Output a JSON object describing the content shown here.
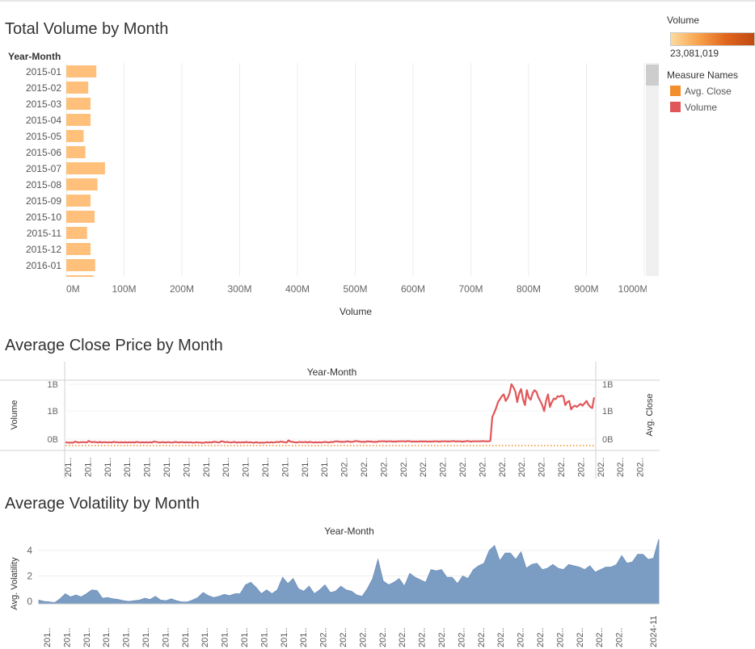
{
  "charts": {
    "volume": {
      "title": "Total Volume by Month"
    },
    "close": {
      "title": "Average Close Price by Month",
      "x_axis_title": "Year-Month"
    },
    "volatility": {
      "title": "Average Volatility by Month",
      "x_axis_title": "Year-Month"
    }
  },
  "legend": {
    "color_title": "Volume",
    "color_value": "23,081,019",
    "measure_title": "Measure Names",
    "measures": [
      {
        "label": "Avg. Close",
        "color": "#f28e2b"
      },
      {
        "label": "Volume",
        "color": "#e15759"
      }
    ]
  },
  "chart_data": [
    {
      "type": "bar",
      "orientation": "horizontal",
      "title": "Total Volume by Month",
      "ylabel": "Year-Month",
      "xlabel": "Volume",
      "categories": [
        "2015-01",
        "2015-02",
        "2015-03",
        "2015-04",
        "2015-05",
        "2015-06",
        "2015-07",
        "2015-08",
        "2015-09",
        "2015-10",
        "2015-11",
        "2015-12",
        "2016-01"
      ],
      "values": [
        52000000,
        38000000,
        42000000,
        42000000,
        30000000,
        33000000,
        67000000,
        54000000,
        42000000,
        49000000,
        36000000,
        42000000,
        50000000
      ],
      "xlim": [
        0,
        1000000000
      ],
      "xticks": [
        "0M",
        "100M",
        "200M",
        "300M",
        "400M",
        "500M",
        "600M",
        "700M",
        "800M",
        "900M",
        "1000M"
      ],
      "bar_color": "#ffc07c"
    },
    {
      "type": "line",
      "title": "Average Close Price by Month",
      "xlabel": "Year-Month",
      "ylabel_left": "Volume",
      "ylabel_right": "Avg. Close",
      "yticks_left": [
        "1B",
        "1B",
        "0B"
      ],
      "yticks_right": [
        "1B",
        "1B",
        "0B"
      ],
      "x_tick_labels": [
        "201..",
        "201..",
        "201..",
        "201..",
        "201..",
        "201..",
        "201..",
        "201..",
        "201..",
        "201..",
        "201..",
        "201..",
        "201..",
        "201..",
        "202..",
        "202..",
        "202..",
        "202..",
        "202..",
        "202..",
        "202..",
        "202..",
        "202..",
        "202..",
        "202..",
        "202..",
        "202..",
        "202..",
        "202..",
        "202.."
      ],
      "series": [
        {
          "name": "Volume",
          "color": "#e15759",
          "values": [
            0.03,
            0.025,
            0.02,
            0.025,
            0.02,
            0.04,
            0.03,
            0.025,
            0.03,
            0.03,
            0.03,
            0.025,
            0.05,
            0.035,
            0.03,
            0.035,
            0.03,
            0.025,
            0.035,
            0.025,
            0.03,
            0.03,
            0.025,
            0.03,
            0.025,
            0.035,
            0.03,
            0.03,
            0.025,
            0.03,
            0.025,
            0.03,
            0.025,
            0.03,
            0.025,
            0.03,
            0.025,
            0.035,
            0.03,
            0.025,
            0.03,
            0.025,
            0.03,
            0.025,
            0.03,
            0.025,
            0.04,
            0.035,
            0.03,
            0.025,
            0.03,
            0.03,
            0.025,
            0.03,
            0.03,
            0.025,
            0.025,
            0.035,
            0.03,
            0.025,
            0.03,
            0.03,
            0.025,
            0.03,
            0.025,
            0.03,
            0.025,
            0.02,
            0.03,
            0.025,
            0.025,
            0.02,
            0.02,
            0.03,
            0.025,
            0.03,
            0.025,
            0.035,
            0.035,
            0.03,
            0.025,
            0.045,
            0.04,
            0.03,
            0.035,
            0.03,
            0.025,
            0.03,
            0.035,
            0.02,
            0.03,
            0.025,
            0.03,
            0.025,
            0.035,
            0.025,
            0.03,
            0.025,
            0.02,
            0.03,
            0.025,
            0.02,
            0.025,
            0.02,
            0.025,
            0.03,
            0.025,
            0.03,
            0.025,
            0.03,
            0.035,
            0.03,
            0.04,
            0.035,
            0.03,
            0.025,
            0.06,
            0.04,
            0.035,
            0.03,
            0.025,
            0.03,
            0.035,
            0.03,
            0.03,
            0.035,
            0.025,
            0.035,
            0.03,
            0.025,
            0.03,
            0.025,
            0.03,
            0.025,
            0.03,
            0.035,
            0.03,
            0.025,
            0.035,
            0.03,
            0.04,
            0.045,
            0.04,
            0.035,
            0.035,
            0.035,
            0.04,
            0.045,
            0.035,
            0.035,
            0.04,
            0.05,
            0.045,
            0.04,
            0.035,
            0.035,
            0.035,
            0.045,
            0.04,
            0.04,
            0.035,
            0.035,
            0.035,
            0.045,
            0.045,
            0.045,
            0.045,
            0.04,
            0.045,
            0.045,
            0.04,
            0.04,
            0.04,
            0.045,
            0.045,
            0.045,
            0.045,
            0.04,
            0.05,
            0.045,
            0.04,
            0.04,
            0.04,
            0.04,
            0.04,
            0.045,
            0.04,
            0.045,
            0.04,
            0.04,
            0.04,
            0.04,
            0.045,
            0.045,
            0.04,
            0.04,
            0.045,
            0.045,
            0.045,
            0.04,
            0.045,
            0.045,
            0.05,
            0.04,
            0.045,
            0.045,
            0.04,
            0.04,
            0.045,
            0.05,
            0.045,
            0.04,
            0.045,
            0.045,
            0.045,
            0.045,
            0.045,
            0.05,
            0.045,
            0.045,
            0.045,
            0.05,
            0.45,
            0.52,
            0.6,
            0.7,
            0.75,
            0.8,
            0.83,
            0.72,
            0.77,
            0.85,
            1.0,
            0.95,
            0.88,
            0.7,
            0.85,
            0.92,
            0.75,
            0.65,
            0.9,
            0.78,
            0.74,
            0.85,
            0.9,
            0.87,
            0.78,
            0.72,
            0.65,
            0.55,
            0.72,
            0.83,
            0.62,
            0.7,
            0.76,
            0.75,
            0.8,
            0.79,
            0.81,
            0.8,
            0.65,
            0.7,
            0.72,
            0.58,
            0.62,
            0.64,
            0.62,
            0.65,
            0.67,
            0.64,
            0.68,
            0.72,
            0.66,
            0.62,
            0.6,
            0.78
          ]
        },
        {
          "name": "Avg. Close",
          "color": "#f28e2b",
          "line_style": "dotted",
          "values": [
            0.0,
            0.0
          ]
        }
      ]
    },
    {
      "type": "area",
      "title": "Average Volatility by Month",
      "xlabel": "Year-Month",
      "ylabel": "Avg. Volatility",
      "yticks": [
        0,
        2,
        4
      ],
      "ylim": [
        -0.5,
        5
      ],
      "x_tick_labels": [
        "201..",
        "201..",
        "201..",
        "201..",
        "201..",
        "201..",
        "201..",
        "201..",
        "201..",
        "201..",
        "201..",
        "201..",
        "201..",
        "201..",
        "202..",
        "202..",
        "202..",
        "202..",
        "202..",
        "202..",
        "202..",
        "202..",
        "202..",
        "202..",
        "202..",
        "202..",
        "202..",
        "202..",
        "202..",
        "202..",
        "2024-11"
      ],
      "series": [
        {
          "name": "Avg. Volatility",
          "color": "#7b9cc3",
          "values": [
            0.1,
            0.0,
            -0.05,
            -0.1,
            0.2,
            0.6,
            0.35,
            0.5,
            0.35,
            0.6,
            0.9,
            0.85,
            0.25,
            0.3,
            0.2,
            0.15,
            0.05,
            0.0,
            0.05,
            0.1,
            0.25,
            0.15,
            0.4,
            0.1,
            0.05,
            0.2,
            0.05,
            -0.05,
            -0.05,
            0.1,
            0.3,
            0.7,
            0.45,
            0.3,
            0.4,
            0.55,
            0.45,
            0.6,
            0.6,
            1.3,
            1.5,
            1.1,
            0.6,
            0.9,
            0.6,
            0.9,
            1.9,
            1.4,
            1.8,
            1.0,
            0.8,
            1.2,
            0.6,
            0.9,
            1.3,
            0.7,
            0.8,
            1.2,
            0.9,
            0.8,
            0.5,
            0.4,
            1.0,
            1.8,
            3.3,
            1.6,
            1.3,
            1.5,
            1.8,
            1.2,
            2.2,
            1.9,
            1.7,
            1.5,
            2.5,
            2.4,
            2.5,
            1.9,
            1.9,
            1.4,
            2.0,
            1.8,
            2.5,
            2.8,
            3.0,
            4.0,
            4.4,
            3.2,
            3.8,
            3.8,
            3.3,
            3.9,
            2.6,
            2.9,
            3.0,
            2.5,
            2.6,
            2.9,
            2.6,
            2.5,
            2.9,
            2.8,
            2.7,
            2.5,
            2.8,
            2.3,
            2.5,
            2.7,
            2.7,
            2.9,
            3.6,
            3.0,
            3.1,
            3.7,
            3.7,
            3.3,
            3.4,
            4.9
          ]
        }
      ]
    }
  ]
}
